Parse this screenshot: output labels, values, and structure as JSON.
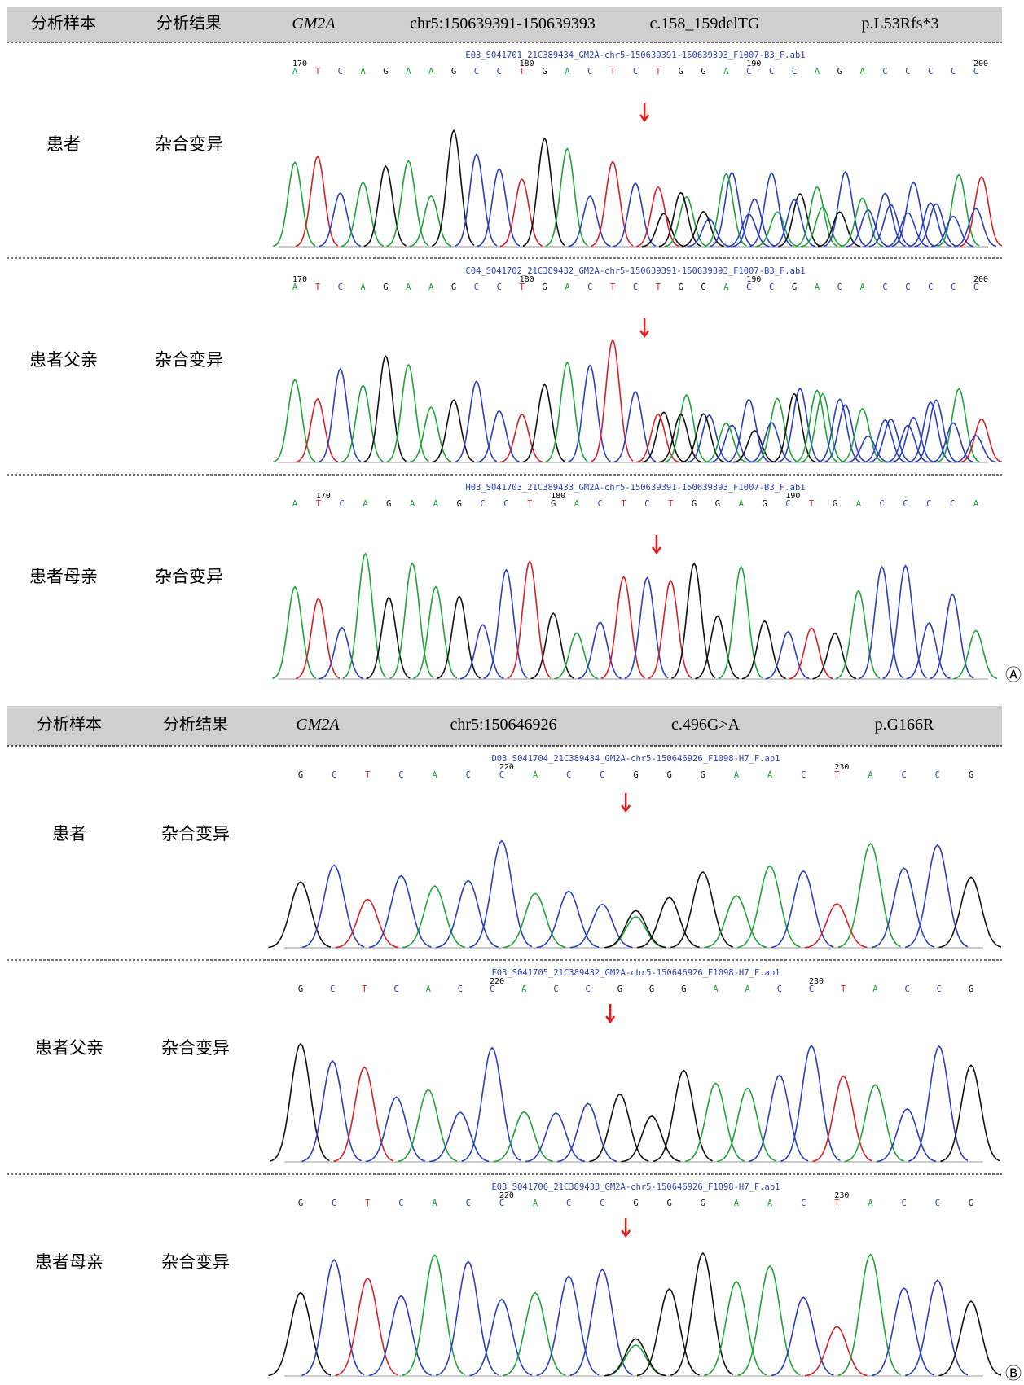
{
  "panels": [
    {
      "label": "Ⓐ",
      "header": [
        "分析样本",
        "分析结果",
        "GM2A",
        "chr5:150639391-150639393",
        "c.158_159delTG",
        "p.L53Rfs*3"
      ],
      "rows": [
        {
          "sample": "患者",
          "result": "杂合变异",
          "trace_file": "E03_S041701_21C389434_GM2A-chr5-150639391-150639393_F1007-B3_F.ab1",
          "bases": "ATCAGAAGCCTGACTCTGGACCCAGACCCCC",
          "positions": [
            170,
            180,
            190,
            200
          ]
        },
        {
          "sample": "患者父亲",
          "result": "杂合变异",
          "trace_file": "C04_S041702_21C389432_GM2A-chr5-150639391-150639393_F1007-B3_F.ab1",
          "bases": "ATCAGAAGCCTGACTCTGGACCGACACCCCC",
          "positions": [
            170,
            180,
            190,
            200
          ]
        },
        {
          "sample": "患者母亲",
          "result": "杂合变异",
          "trace_file": "H03_S041703_21C389433_GM2A-chr5-150639391-150639393_F1007-B3_F.ab1",
          "bases": "ATCAGAAGCCTGACTCTGGAGCTGACCCCA",
          "positions": [
            170,
            180,
            190
          ]
        }
      ]
    },
    {
      "label": "Ⓑ",
      "header": [
        "分析样本",
        "分析结果",
        "GM2A",
        "chr5:150646926",
        "c.496G>A",
        "p.G166R"
      ],
      "rows": [
        {
          "sample": "患者",
          "result": "杂合变异",
          "trace_file": "D03_S041704_21C389434_GM2A-chr5-150646926_F1098-H7_F.ab1",
          "bases": "GCTCACCACCGGGAACTACCG",
          "positions": [
            220,
            230
          ]
        },
        {
          "sample": "患者父亲",
          "result": "杂合变异",
          "trace_file": "F03_S041705_21C389432_GM2A-chr5-150646926_F1098-H7_F.ab1",
          "bases": "GCTCACCACCGGGAACCTACCG",
          "positions": [
            220,
            230
          ]
        },
        {
          "sample": "患者母亲",
          "result": "杂合变异",
          "trace_file": "E03_S041706_21C389433_GM2A-chr5-150646926_F1098-H7_F.ab1",
          "bases": "GCTCACCACCGGGAACTACCG",
          "positions": [
            220,
            230
          ]
        }
      ]
    }
  ]
}
